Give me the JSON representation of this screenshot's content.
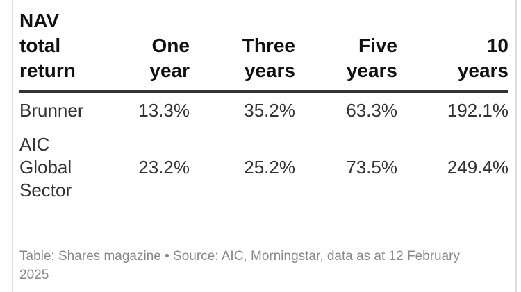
{
  "table": {
    "header": [
      "NAV total return",
      "One year",
      "Three years",
      "Five years",
      "10 years"
    ],
    "rows": [
      [
        "Brunner",
        "13.3%",
        "35.2%",
        "63.3%",
        "192.1%"
      ],
      [
        "AIC Global Sector",
        "23.2%",
        "25.2%",
        "73.5%",
        "249.4%"
      ]
    ]
  },
  "footer": "Table: Shares magazine • Source: AIC, Morningstar, data as at 12 February 2025"
}
